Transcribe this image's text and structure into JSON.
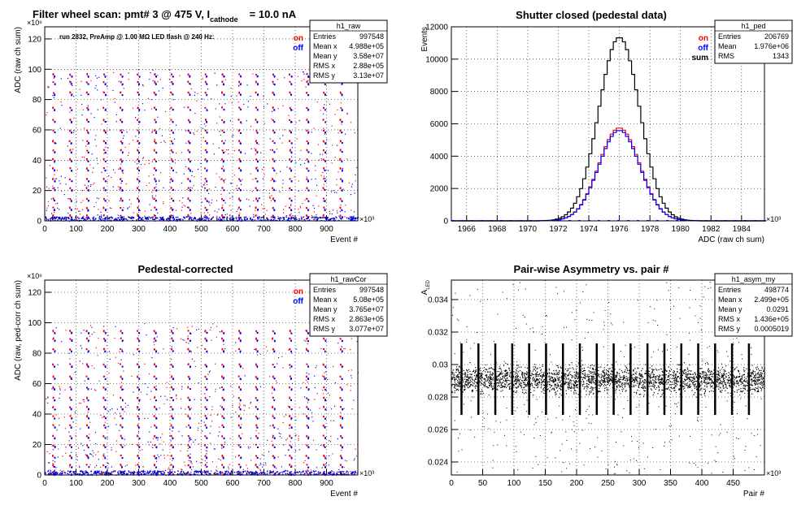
{
  "colors": {
    "on": "#ff0000",
    "off": "#0000ff",
    "sum": "#000000",
    "grid": "#000000"
  },
  "chart_data": [
    {
      "type": "scatter",
      "title": "Filter wheel scan: pmt#   3 @   475 V, I",
      "title_subscript": "cathode",
      "title_suffix": "= 10.0 nA",
      "annotation": "run 2832, PreAmp @ 1.00 MΩ   LED flash @  240 Hz:",
      "xlabel": "Event #",
      "ylabel": "ADC (raw ch sum)",
      "x_exponent": "×10³",
      "y_exponent": "×10⁶",
      "xlim": [
        0,
        1000
      ],
      "ylim": [
        0,
        128
      ],
      "xticks": [
        0,
        100,
        200,
        300,
        400,
        500,
        600,
        700,
        800,
        900
      ],
      "yticks": [
        0,
        20,
        40,
        60,
        80,
        100,
        120
      ],
      "legend": [
        "on",
        "off"
      ],
      "stats": {
        "name": "h1_raw",
        "rows": [
          [
            "Entries",
            "997548"
          ],
          [
            "Mean x",
            "4.988e+05"
          ],
          [
            "Mean y",
            "3.58e+07"
          ],
          [
            "RMS x",
            "2.88e+05"
          ],
          [
            "RMS y",
            "3.13e+07"
          ]
        ]
      },
      "levels": [
        96,
        91,
        84,
        74,
        66,
        59,
        52,
        46,
        40,
        34,
        27,
        21,
        14,
        8,
        3
      ],
      "period": 54
    },
    {
      "type": "line",
      "title": "Shutter closed (pedestal data)",
      "xlabel": "ADC (raw ch sum)",
      "ylabel": "Events",
      "x_exponent": "×10³",
      "xlim": [
        1965,
        1985.5
      ],
      "ylim": [
        0,
        12000
      ],
      "xticks": [
        1966,
        1968,
        1970,
        1972,
        1974,
        1976,
        1978,
        1980,
        1982,
        1984
      ],
      "yticks": [
        0,
        2000,
        4000,
        6000,
        8000,
        10000,
        12000
      ],
      "legend": [
        "on",
        "off",
        "sum"
      ],
      "stats": {
        "name": "h1_ped",
        "rows": [
          [
            "Entries",
            "206769"
          ],
          [
            "Mean",
            "1.976e+06"
          ],
          [
            "RMS",
            "1343"
          ]
        ]
      },
      "series": [
        {
          "name": "on",
          "mean": 1976,
          "sigma": 1.34,
          "peak": 5750
        },
        {
          "name": "off",
          "mean": 1976,
          "sigma": 1.34,
          "peak": 5600
        },
        {
          "name": "sum",
          "mean": 1976,
          "sigma": 1.34,
          "peak": 11350
        }
      ]
    },
    {
      "type": "scatter",
      "title": "Pedestal-corrected",
      "xlabel": "Event #",
      "ylabel": "ADC (raw, ped-corr ch sum)",
      "x_exponent": "×10³",
      "y_exponent": "×10⁶",
      "xlim": [
        0,
        1000
      ],
      "ylim": [
        0,
        128
      ],
      "xticks": [
        0,
        100,
        200,
        300,
        400,
        500,
        600,
        700,
        800,
        900
      ],
      "yticks": [
        0,
        20,
        40,
        60,
        80,
        100,
        120
      ],
      "legend": [
        "on",
        "off"
      ],
      "stats": {
        "name": "h1_rawCor",
        "rows": [
          [
            "Entries",
            "997548"
          ],
          [
            "Mean x",
            "5.08e+05"
          ],
          [
            "Mean y",
            "3.765e+07"
          ],
          [
            "RMS x",
            "2.863e+05"
          ],
          [
            "RMS y",
            "3.077e+07"
          ]
        ]
      },
      "levels": [
        94,
        89,
        82,
        72,
        64,
        57,
        50,
        44,
        38,
        32,
        25,
        19,
        12,
        6,
        1
      ],
      "period": 54
    },
    {
      "type": "scatter",
      "title": "Pair-wise Asymmetry vs. pair #",
      "xlabel": "Pair #",
      "ylabel": "A",
      "ylabel_subscript": "LED",
      "x_exponent": "×10³",
      "xlim": [
        0,
        500
      ],
      "ylim": [
        0.0232,
        0.0352
      ],
      "xticks": [
        0,
        50,
        100,
        150,
        200,
        250,
        300,
        350,
        400,
        450
      ],
      "yticks": [
        0.024,
        0.026,
        0.028,
        0.03,
        0.032,
        0.034
      ],
      "stats": {
        "name": "h1_asym_my",
        "rows": [
          [
            "Entries",
            "498774"
          ],
          [
            "Mean x",
            "2.499e+05"
          ],
          [
            "Mean y",
            "0.0291"
          ],
          [
            "RMS x",
            "1.436e+05"
          ],
          [
            "RMS y",
            "0.0005019"
          ]
        ]
      },
      "band_center": 0.0291,
      "band_halfwidth": 0.0006,
      "period": 27
    }
  ]
}
